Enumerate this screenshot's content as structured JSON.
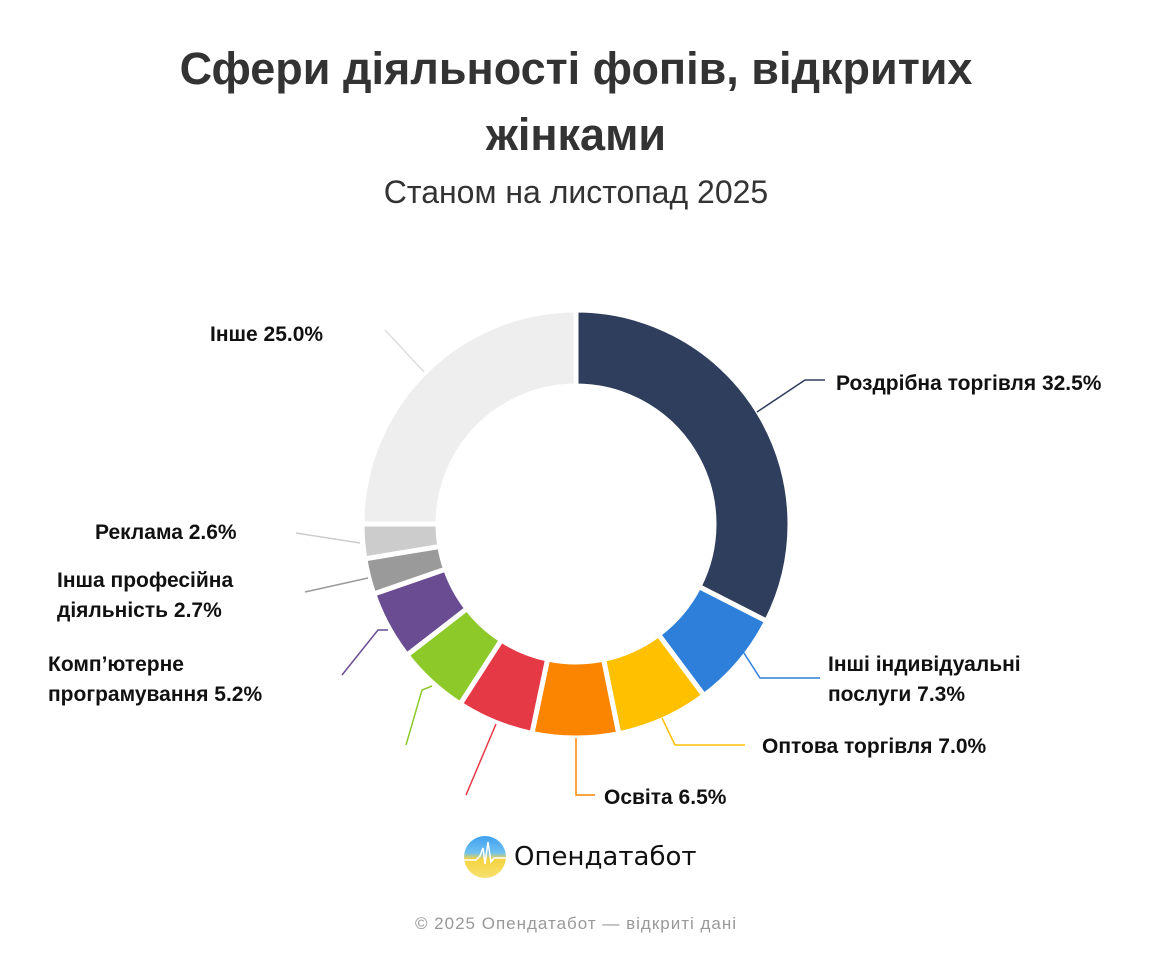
{
  "title_line1": "Сфери діяльності фопів, відкритих",
  "title_line2": "жінками",
  "subtitle": "Станом на листопад 2025",
  "chart_data": {
    "type": "pie",
    "donut": true,
    "title": "Сфери діяльності фопів, відкритих жінками",
    "subtitle": "Станом на листопад 2025",
    "unit": "%",
    "slices": [
      {
        "label": "Роздрібна торгівля",
        "value": 32.5,
        "display": "Роздрібна торгівля 32.5%",
        "color": "#2e3e5c"
      },
      {
        "label": "Інші індивідуальні послуги",
        "value": 7.3,
        "display1": "Інші індивідуальні",
        "display2": "послуги 7.3%",
        "color": "#2e7fd9"
      },
      {
        "label": "Оптова торгівля",
        "value": 7.0,
        "display": "Оптова торгівля 7.0%",
        "color": "#ffc000"
      },
      {
        "label": "Освіта",
        "value": 6.5,
        "display": "Освіта 6.5%",
        "color": "#fb8500"
      },
      {
        "label": "",
        "value": 5.8,
        "color": "#e63946"
      },
      {
        "label": "",
        "value": 5.4,
        "color": "#8cc929"
      },
      {
        "label": "Комп’ютерне програмування",
        "value": 5.2,
        "display1": "Комп’ютерне",
        "display2": "програмування 5.2%",
        "color": "#6a4c93"
      },
      {
        "label": "Інша професійна діяльність",
        "value": 2.7,
        "display1": "Інша професійна",
        "display2": "діяльність 2.7%",
        "color": "#9a9a9a"
      },
      {
        "label": "Реклама",
        "value": 2.6,
        "display": "Реклама 2.6%",
        "color": "#cccccc"
      },
      {
        "label": "Інше",
        "value": 25.0,
        "display": "Інше 25.0%",
        "color": "#eeeeee"
      }
    ]
  },
  "brand": {
    "name": "Опендатабот"
  },
  "footer": "© 2025 Опендатабот — відкриті дані"
}
